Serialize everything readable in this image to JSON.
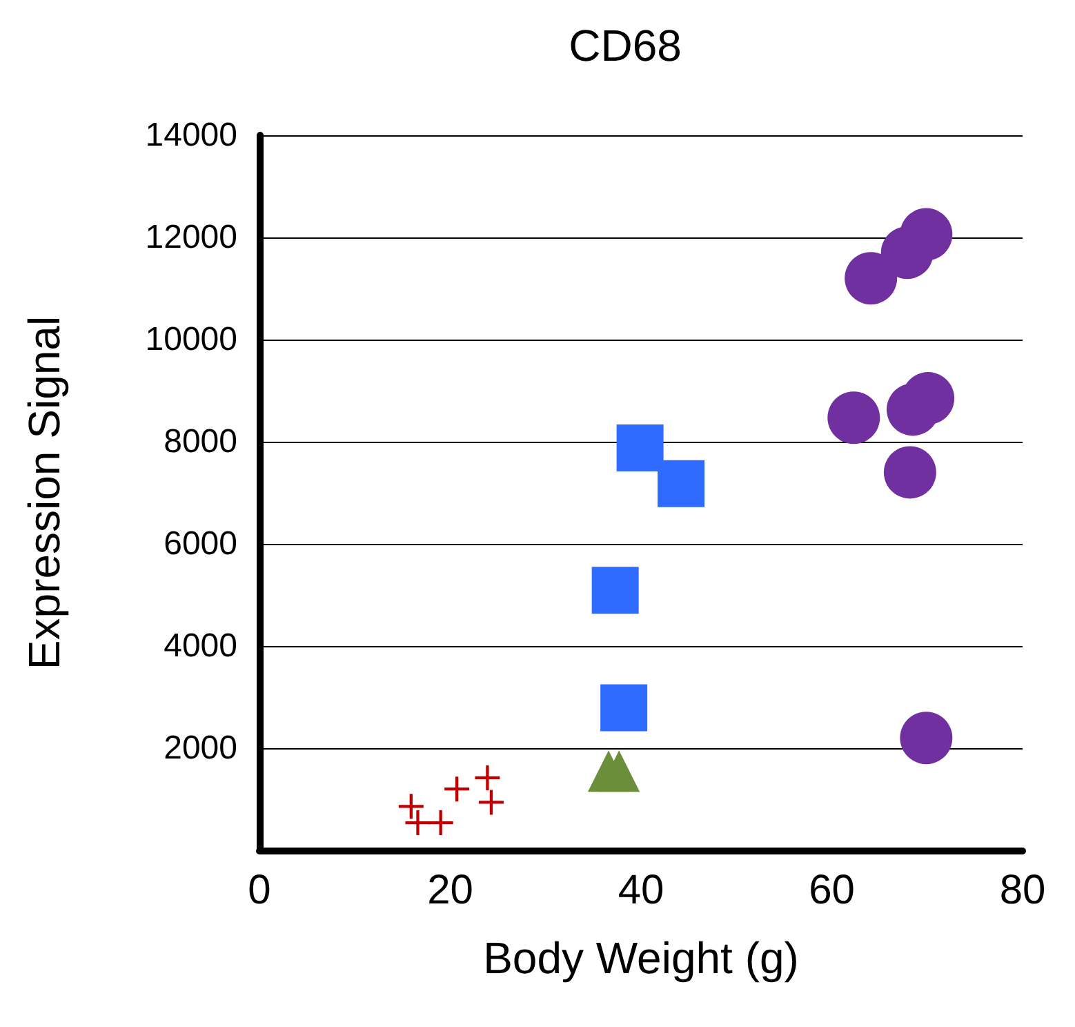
{
  "chart_data": {
    "type": "scatter",
    "title": "CD68",
    "xlabel": "Body Weight (g)",
    "ylabel": "Expression Signal",
    "xlim": [
      0,
      80
    ],
    "xticks": [
      0,
      20,
      40,
      60,
      80
    ],
    "ylim": [
      0,
      14000
    ],
    "yticks": [
      2000,
      4000,
      6000,
      8000,
      10000,
      12000,
      14000
    ],
    "grid": "y",
    "series": [
      {
        "color": "#c00000",
        "marker": "cross",
        "x": [
          15.9,
          16.6,
          19,
          20.7,
          23.9,
          24.3
        ],
        "values": [
          860,
          540,
          540,
          1200,
          1420,
          940
        ]
      },
      {
        "color": "#6b8e3a",
        "marker": "triangle",
        "x": [
          36.6,
          37.7
        ],
        "values": [
          1550,
          1550
        ]
      },
      {
        "color": "#2f6bff",
        "marker": "square",
        "x": [
          39.9,
          44.2,
          37.3,
          38.2
        ],
        "values": [
          7880,
          7180,
          5090,
          2790
        ]
      },
      {
        "color": "#7030a0",
        "marker": "circle",
        "x": [
          64.1,
          67.9,
          69.9,
          62.3,
          68.5,
          70.1,
          68.2,
          69.9
        ],
        "values": [
          11200,
          11700,
          12060,
          8470,
          8630,
          8850,
          7400,
          2200
        ]
      }
    ]
  }
}
